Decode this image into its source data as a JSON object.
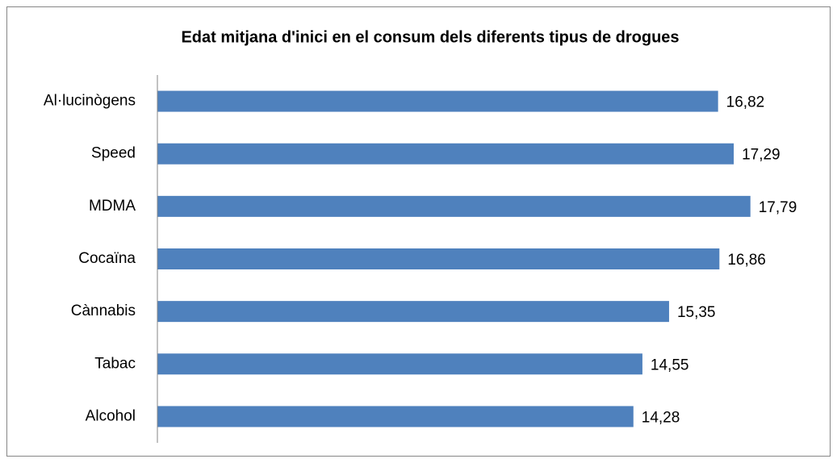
{
  "chart_data": {
    "type": "bar",
    "orientation": "horizontal",
    "title": "Edat mitjana d'inici en el consum dels diferents tipus de drogues",
    "categories": [
      "Al·lucinògens",
      "Speed",
      "MDMA",
      "Cocaïna",
      "Cànnabis",
      "Tabac",
      "Alcohol"
    ],
    "values": [
      16.82,
      17.29,
      17.79,
      16.86,
      15.35,
      14.55,
      14.28
    ],
    "value_labels": [
      "16,82",
      "17,29",
      "17,79",
      "16,86",
      "15,35",
      "14,55",
      "14,28"
    ],
    "color": "#4f81bd",
    "xlim": [
      0,
      20
    ]
  }
}
